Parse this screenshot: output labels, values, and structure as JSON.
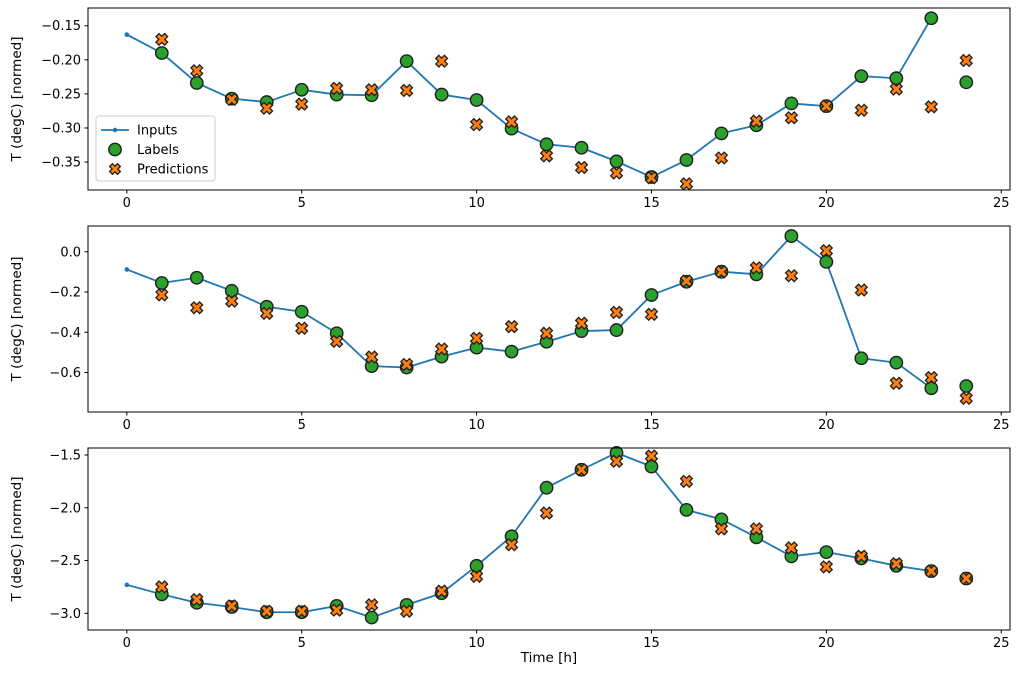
{
  "figure": {
    "background": "#ffffff",
    "xlabel": "Time [h]",
    "ylabel": "T (degC) [normed]",
    "colors": {
      "inputs_line": "#1f77b4",
      "labels_marker": "#2ca02c",
      "predictions_marker": "#ff7f0e",
      "marker_edge": "#1f1f1f",
      "axis": "#000000",
      "legend_border": "#cccccc",
      "legend_background": "#ffffff"
    },
    "legend": {
      "location": "center-left of top panel",
      "items": [
        {
          "label": "Inputs",
          "marker": "line-with-dot",
          "color": "#1f77b4"
        },
        {
          "label": "Labels",
          "marker": "circle",
          "color": "#2ca02c"
        },
        {
          "label": "Predictions",
          "marker": "X",
          "color": "#ff7f0e"
        }
      ]
    }
  },
  "chart_data": [
    {
      "type": "line",
      "panel": 1,
      "ylabel": "T (degC) [normed]",
      "xlim": [
        -1.11,
        25.25
      ],
      "ylim": [
        -0.391,
        -0.124
      ],
      "xticks": [
        0,
        5,
        10,
        15,
        20,
        25
      ],
      "xtick_labels": [
        "0",
        "5",
        "10",
        "15",
        "20",
        "25"
      ],
      "yticks": [
        -0.15,
        -0.2,
        -0.25,
        -0.3,
        -0.35
      ],
      "ytick_labels": [
        "−0.15",
        "−0.20",
        "−0.25",
        "−0.30",
        "−0.35"
      ],
      "grid": false,
      "has_legend": true,
      "series": [
        {
          "name": "Inputs",
          "type": "line",
          "marker": "dot",
          "x": [
            0,
            1,
            2,
            3,
            4,
            5,
            6,
            7,
            8,
            9,
            10,
            11,
            12,
            13,
            14,
            15,
            16,
            17,
            18,
            19,
            20,
            21,
            22,
            23
          ],
          "y": [
            -0.163,
            -0.19,
            -0.234,
            -0.257,
            -0.262,
            -0.244,
            -0.251,
            -0.252,
            -0.202,
            -0.251,
            -0.259,
            -0.301,
            -0.324,
            -0.329,
            -0.349,
            -0.372,
            -0.347,
            -0.308,
            -0.296,
            -0.264,
            -0.268,
            -0.224,
            -0.227,
            -0.139
          ]
        },
        {
          "name": "Labels",
          "type": "scatter",
          "marker": "circle",
          "x": [
            1,
            2,
            3,
            4,
            5,
            6,
            7,
            8,
            9,
            10,
            11,
            12,
            13,
            14,
            15,
            16,
            17,
            18,
            19,
            20,
            21,
            22,
            23,
            24
          ],
          "y": [
            -0.19,
            -0.234,
            -0.257,
            -0.262,
            -0.244,
            -0.251,
            -0.252,
            -0.202,
            -0.251,
            -0.259,
            -0.301,
            -0.324,
            -0.329,
            -0.349,
            -0.372,
            -0.347,
            -0.308,
            -0.296,
            -0.264,
            -0.268,
            -0.224,
            -0.227,
            -0.139,
            -0.233
          ]
        },
        {
          "name": "Predictions",
          "type": "scatter",
          "marker": "X",
          "x": [
            1,
            2,
            3,
            4,
            5,
            6,
            7,
            8,
            9,
            10,
            11,
            12,
            13,
            14,
            15,
            16,
            17,
            18,
            19,
            20,
            21,
            22,
            23,
            24
          ],
          "y": [
            -0.17,
            -0.216,
            -0.258,
            -0.271,
            -0.265,
            -0.242,
            -0.244,
            -0.245,
            -0.202,
            -0.295,
            -0.291,
            -0.341,
            -0.358,
            -0.366,
            -0.373,
            -0.382,
            -0.344,
            -0.29,
            -0.285,
            -0.268,
            -0.274,
            -0.243,
            -0.269,
            -0.201
          ]
        }
      ]
    },
    {
      "type": "line",
      "panel": 2,
      "ylabel": "T (degC) [normed]",
      "xlim": [
        -1.11,
        25.25
      ],
      "ylim": [
        -0.796,
        0.128
      ],
      "xticks": [
        0,
        5,
        10,
        15,
        20,
        25
      ],
      "xtick_labels": [
        "0",
        "5",
        "10",
        "15",
        "20",
        "25"
      ],
      "yticks": [
        0.0,
        -0.2,
        -0.4,
        -0.6
      ],
      "ytick_labels": [
        "0.0",
        "−0.2",
        "−0.4",
        "−0.6"
      ],
      "grid": false,
      "has_legend": false,
      "series": [
        {
          "name": "Inputs",
          "type": "line",
          "marker": "dot",
          "x": [
            0,
            1,
            2,
            3,
            4,
            5,
            6,
            7,
            8,
            9,
            10,
            11,
            12,
            13,
            14,
            15,
            16,
            17,
            18,
            19,
            20,
            21,
            22,
            23
          ],
          "y": [
            -0.088,
            -0.155,
            -0.129,
            -0.194,
            -0.273,
            -0.298,
            -0.405,
            -0.568,
            -0.575,
            -0.521,
            -0.476,
            -0.496,
            -0.447,
            -0.394,
            -0.389,
            -0.215,
            -0.149,
            -0.099,
            -0.112,
            0.078,
            -0.05,
            -0.529,
            -0.551,
            -0.678
          ]
        },
        {
          "name": "Labels",
          "type": "scatter",
          "marker": "circle",
          "x": [
            1,
            2,
            3,
            4,
            5,
            6,
            7,
            8,
            9,
            10,
            11,
            12,
            13,
            14,
            15,
            16,
            17,
            18,
            19,
            20,
            21,
            22,
            23,
            24
          ],
          "y": [
            -0.155,
            -0.129,
            -0.194,
            -0.273,
            -0.298,
            -0.405,
            -0.568,
            -0.575,
            -0.521,
            -0.476,
            -0.496,
            -0.447,
            -0.394,
            -0.389,
            -0.215,
            -0.149,
            -0.099,
            -0.112,
            0.078,
            -0.05,
            -0.529,
            -0.551,
            -0.678,
            -0.667
          ]
        },
        {
          "name": "Predictions",
          "type": "scatter",
          "marker": "X",
          "x": [
            1,
            2,
            3,
            4,
            5,
            6,
            7,
            8,
            9,
            10,
            11,
            12,
            13,
            14,
            15,
            16,
            17,
            18,
            19,
            20,
            21,
            22,
            23,
            24
          ],
          "y": [
            -0.214,
            -0.278,
            -0.245,
            -0.306,
            -0.38,
            -0.445,
            -0.523,
            -0.56,
            -0.483,
            -0.43,
            -0.372,
            -0.405,
            -0.355,
            -0.301,
            -0.311,
            -0.145,
            -0.099,
            -0.08,
            -0.119,
            0.005,
            -0.19,
            -0.653,
            -0.625,
            -0.728
          ]
        }
      ]
    },
    {
      "type": "line",
      "panel": 3,
      "ylabel": "T (degC) [normed]",
      "xlabel": "Time [h]",
      "xlim": [
        -1.11,
        25.25
      ],
      "ylim": [
        -3.158,
        -1.434
      ],
      "xticks": [
        0,
        5,
        10,
        15,
        20,
        25
      ],
      "xtick_labels": [
        "0",
        "5",
        "10",
        "15",
        "20",
        "25"
      ],
      "yticks": [
        -1.5,
        -2.0,
        -2.5,
        -3.0
      ],
      "ytick_labels": [
        "−1.5",
        "−2.0",
        "−2.5",
        "−3.0"
      ],
      "grid": false,
      "has_legend": false,
      "series": [
        {
          "name": "Inputs",
          "type": "line",
          "marker": "dot",
          "x": [
            0,
            1,
            2,
            3,
            4,
            5,
            6,
            7,
            8,
            9,
            10,
            11,
            12,
            13,
            14,
            15,
            16,
            17,
            18,
            19,
            20,
            21,
            22,
            23
          ],
          "y": [
            -2.73,
            -2.82,
            -2.9,
            -2.94,
            -2.99,
            -2.99,
            -2.93,
            -3.04,
            -2.92,
            -2.81,
            -2.55,
            -2.27,
            -1.81,
            -1.64,
            -1.48,
            -1.61,
            -2.02,
            -2.11,
            -2.28,
            -2.46,
            -2.42,
            -2.48,
            -2.55,
            -2.6
          ]
        },
        {
          "name": "Labels",
          "type": "scatter",
          "marker": "circle",
          "x": [
            1,
            2,
            3,
            4,
            5,
            6,
            7,
            8,
            9,
            10,
            11,
            12,
            13,
            14,
            15,
            16,
            17,
            18,
            19,
            20,
            21,
            22,
            23,
            24
          ],
          "y": [
            -2.82,
            -2.9,
            -2.94,
            -2.99,
            -2.99,
            -2.93,
            -3.04,
            -2.92,
            -2.81,
            -2.55,
            -2.27,
            -1.81,
            -1.64,
            -1.48,
            -1.61,
            -2.02,
            -2.11,
            -2.28,
            -2.46,
            -2.42,
            -2.48,
            -2.55,
            -2.6,
            -2.67
          ]
        },
        {
          "name": "Predictions",
          "type": "scatter",
          "marker": "X",
          "x": [
            1,
            2,
            3,
            4,
            5,
            6,
            7,
            8,
            9,
            10,
            11,
            12,
            13,
            14,
            15,
            16,
            17,
            18,
            19,
            20,
            21,
            22,
            23,
            24
          ],
          "y": [
            -2.75,
            -2.87,
            -2.93,
            -2.98,
            -2.98,
            -2.97,
            -2.92,
            -2.98,
            -2.79,
            -2.65,
            -2.35,
            -2.05,
            -1.64,
            -1.56,
            -1.51,
            -1.75,
            -2.2,
            -2.2,
            -2.38,
            -2.56,
            -2.46,
            -2.53,
            -2.6,
            -2.67
          ]
        }
      ]
    }
  ]
}
